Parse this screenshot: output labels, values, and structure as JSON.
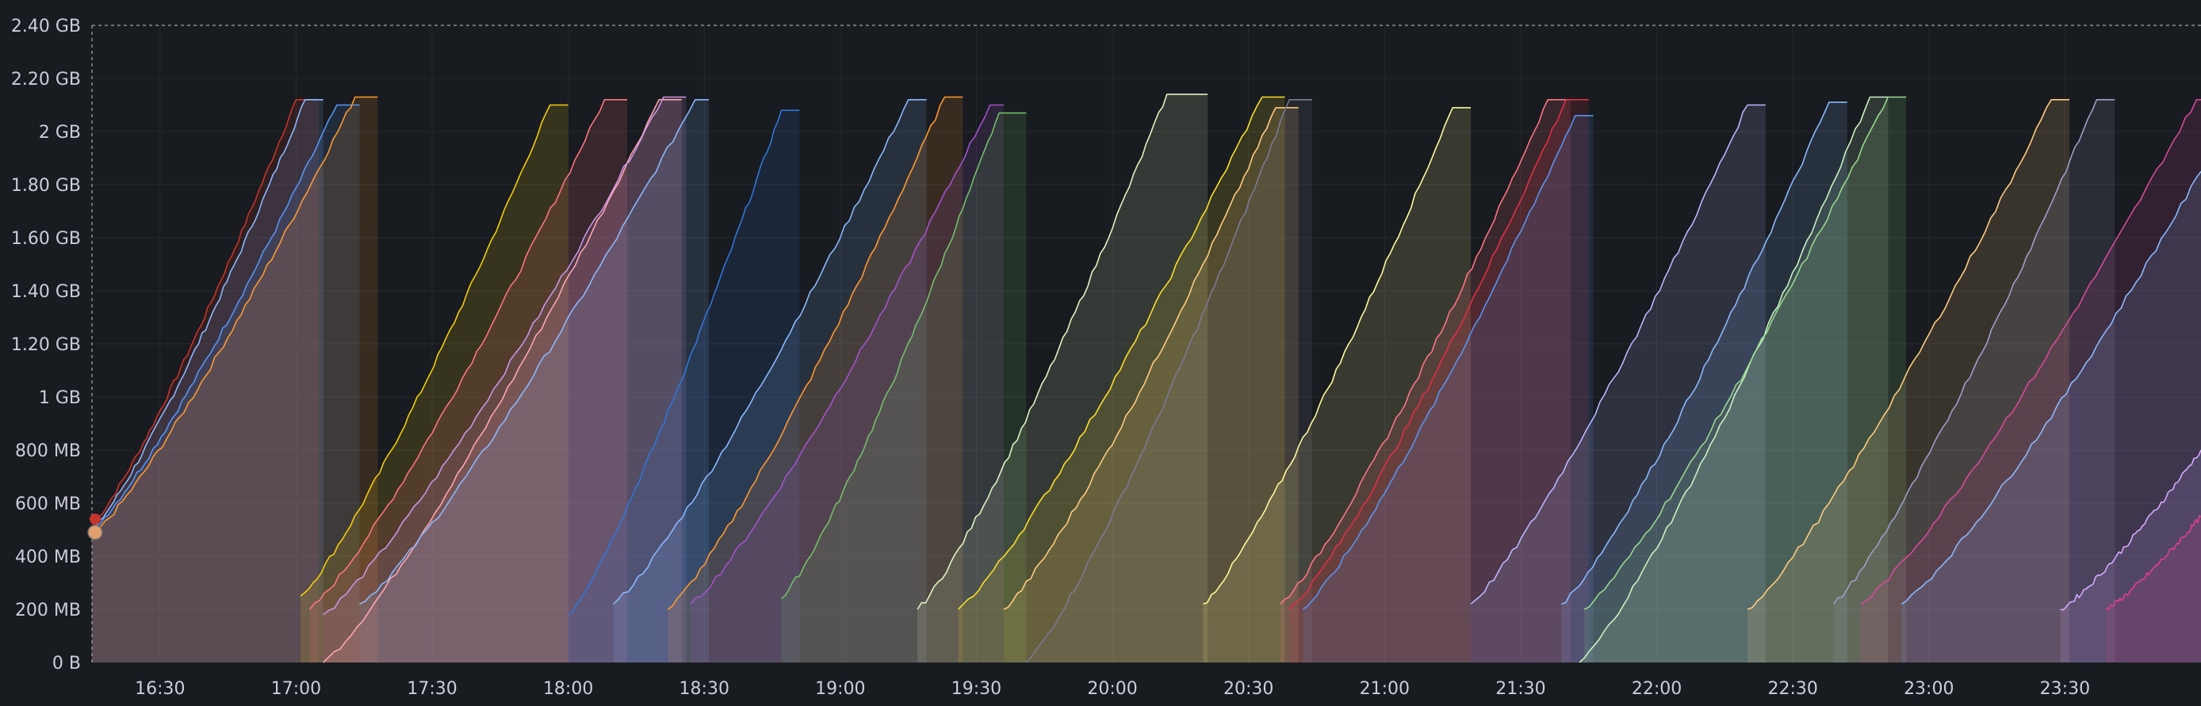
{
  "chart_data": {
    "type": "area",
    "title": "",
    "xlabel": "",
    "ylabel": "",
    "x_range": [
      "16:15",
      "24:00"
    ],
    "ylim": [
      0,
      2.4
    ],
    "y_unit": "GB",
    "y_ticks": [
      {
        "value": 0,
        "label": "0 B"
      },
      {
        "value": 0.2,
        "label": "200 MB"
      },
      {
        "value": 0.4,
        "label": "400 MB"
      },
      {
        "value": 0.6,
        "label": "600 MB"
      },
      {
        "value": 0.8,
        "label": "800 MB"
      },
      {
        "value": 1.0,
        "label": "1 GB"
      },
      {
        "value": 1.2,
        "label": "1.20 GB"
      },
      {
        "value": 1.4,
        "label": "1.40 GB"
      },
      {
        "value": 1.6,
        "label": "1.60 GB"
      },
      {
        "value": 1.8,
        "label": "1.80 GB"
      },
      {
        "value": 2.0,
        "label": "2 GB"
      },
      {
        "value": 2.2,
        "label": "2.20 GB"
      },
      {
        "value": 2.4,
        "label": "2.40 GB"
      }
    ],
    "x_ticks": [
      "16:30",
      "17:00",
      "17:30",
      "18:00",
      "18:30",
      "19:00",
      "19:30",
      "20:00",
      "20:30",
      "21:00",
      "21:30",
      "22:00",
      "22:30",
      "23:00",
      "23:30"
    ],
    "threshold": 2.4,
    "grid": true,
    "legend": "none",
    "series": [
      {
        "color": "#c4352b",
        "start": "16:15",
        "peak_time": "17:00",
        "start_value": 0.52,
        "peak_value": 2.12,
        "end": "17:05"
      },
      {
        "color": "#8ab8ff",
        "start": "16:15",
        "peak_time": "17:02",
        "start_value": 0.5,
        "peak_value": 2.12,
        "end": "17:06"
      },
      {
        "color": "#5794f2",
        "start": "16:15",
        "peak_time": "17:09",
        "start_value": 0.5,
        "peak_value": 2.1,
        "end": "17:14"
      },
      {
        "color": "#ff9830",
        "start": "16:15",
        "peak_time": "17:13",
        "start_value": 0.48,
        "peak_value": 2.13,
        "end": "17:18"
      },
      {
        "color": "#f2cc0c",
        "start": "17:01",
        "peak_time": "17:56",
        "start_value": 0.25,
        "peak_value": 2.1,
        "end": "18:00"
      },
      {
        "color": "#ff7383",
        "start": "17:03",
        "peak_time": "18:08",
        "start_value": 0.2,
        "peak_value": 2.12,
        "end": "18:13"
      },
      {
        "color": "#ffa6b0",
        "start": "17:06",
        "peak_time": "18:20",
        "start_value": 0.0,
        "peak_value": 2.12,
        "end": "18:25"
      },
      {
        "color": "#ca95e5",
        "start": "17:06",
        "peak_time": "18:21",
        "start_value": 0.18,
        "peak_value": 2.13,
        "end": "18:26"
      },
      {
        "color": "#8ab8ff",
        "start": "17:14",
        "peak_time": "18:28",
        "start_value": 0.22,
        "peak_value": 2.12,
        "end": "18:31"
      },
      {
        "color": "#3274d9",
        "start": "18:00",
        "peak_time": "18:47",
        "start_value": 0.18,
        "peak_value": 2.08,
        "end": "18:51"
      },
      {
        "color": "#8ab8ff",
        "start": "18:10",
        "peak_time": "19:15",
        "start_value": 0.22,
        "peak_value": 2.12,
        "end": "19:19"
      },
      {
        "color": "#ff9830",
        "start": "18:22",
        "peak_time": "19:23",
        "start_value": 0.2,
        "peak_value": 2.13,
        "end": "19:27"
      },
      {
        "color": "#a352cc",
        "start": "18:27",
        "peak_time": "19:33",
        "start_value": 0.22,
        "peak_value": 2.1,
        "end": "19:36"
      },
      {
        "color": "#73bf69",
        "start": "18:47",
        "peak_time": "19:35",
        "start_value": 0.24,
        "peak_value": 2.07,
        "end": "19:41"
      },
      {
        "color": "#e0f2c0",
        "start": "19:17",
        "peak_time": "20:12",
        "start_value": 0.2,
        "peak_value": 2.14,
        "end": "20:21"
      },
      {
        "color": "#fade2a",
        "start": "19:26",
        "peak_time": "20:33",
        "start_value": 0.2,
        "peak_value": 2.13,
        "end": "20:38"
      },
      {
        "color": "#ffcb7d",
        "start": "19:36",
        "peak_time": "20:36",
        "start_value": 0.2,
        "peak_value": 2.09,
        "end": "20:41"
      },
      {
        "color": "#7a7a93",
        "start": "19:41",
        "peak_time": "20:39",
        "start_value": 0.0,
        "peak_value": 2.12,
        "end": "20:44"
      },
      {
        "color": "#fff899",
        "start": "20:20",
        "peak_time": "21:15",
        "start_value": 0.22,
        "peak_value": 2.09,
        "end": "21:19"
      },
      {
        "color": "#ff7383",
        "start": "20:37",
        "peak_time": "21:36",
        "start_value": 0.22,
        "peak_value": 2.12,
        "end": "21:41"
      },
      {
        "color": "#e02f44",
        "start": "20:39",
        "peak_time": "21:40",
        "start_value": 0.2,
        "peak_value": 2.12,
        "end": "21:45"
      },
      {
        "color": "#5794f2",
        "start": "20:42",
        "peak_time": "21:42",
        "start_value": 0.2,
        "peak_value": 2.06,
        "end": "21:46"
      },
      {
        "color": "#b8b8ff",
        "start": "21:19",
        "peak_time": "22:20",
        "start_value": 0.22,
        "peak_value": 2.1,
        "end": "22:24"
      },
      {
        "color": "#8ab8ff",
        "start": "21:39",
        "peak_time": "22:38",
        "start_value": 0.22,
        "peak_value": 2.11,
        "end": "22:42"
      },
      {
        "color": "#c8f2c2",
        "start": "21:43",
        "peak_time": "22:47",
        "start_value": 0.0,
        "peak_value": 2.13,
        "end": "22:51"
      },
      {
        "color": "#96d98d",
        "start": "21:44",
        "peak_time": "22:51",
        "start_value": 0.2,
        "peak_value": 2.13,
        "end": "22:55"
      },
      {
        "color": "#ffcb7d",
        "start": "22:20",
        "peak_time": "23:27",
        "start_value": 0.2,
        "peak_value": 2.12,
        "end": "23:31"
      },
      {
        "color": "#9e9ec9",
        "start": "22:39",
        "peak_time": "23:37",
        "start_value": 0.22,
        "peak_value": 2.12,
        "end": "23:41"
      },
      {
        "color": "#d64a9a",
        "start": "22:45",
        "peak_time": "23:59",
        "start_value": 0.22,
        "peak_value": 2.12,
        "end": "24:00"
      },
      {
        "color": "#8ab8ff",
        "start": "22:54",
        "peak_time": "24:00",
        "start_value": 0.22,
        "peak_value": 1.85,
        "end": "24:00"
      },
      {
        "color": "#d8a8ff",
        "start": "23:29",
        "peak_time": "24:00",
        "start_value": 0.2,
        "peak_value": 0.8,
        "end": "24:00"
      },
      {
        "color": "#e0408a",
        "start": "23:39",
        "peak_time": "24:00",
        "start_value": 0.2,
        "peak_value": 0.55,
        "end": "24:00"
      }
    ]
  }
}
